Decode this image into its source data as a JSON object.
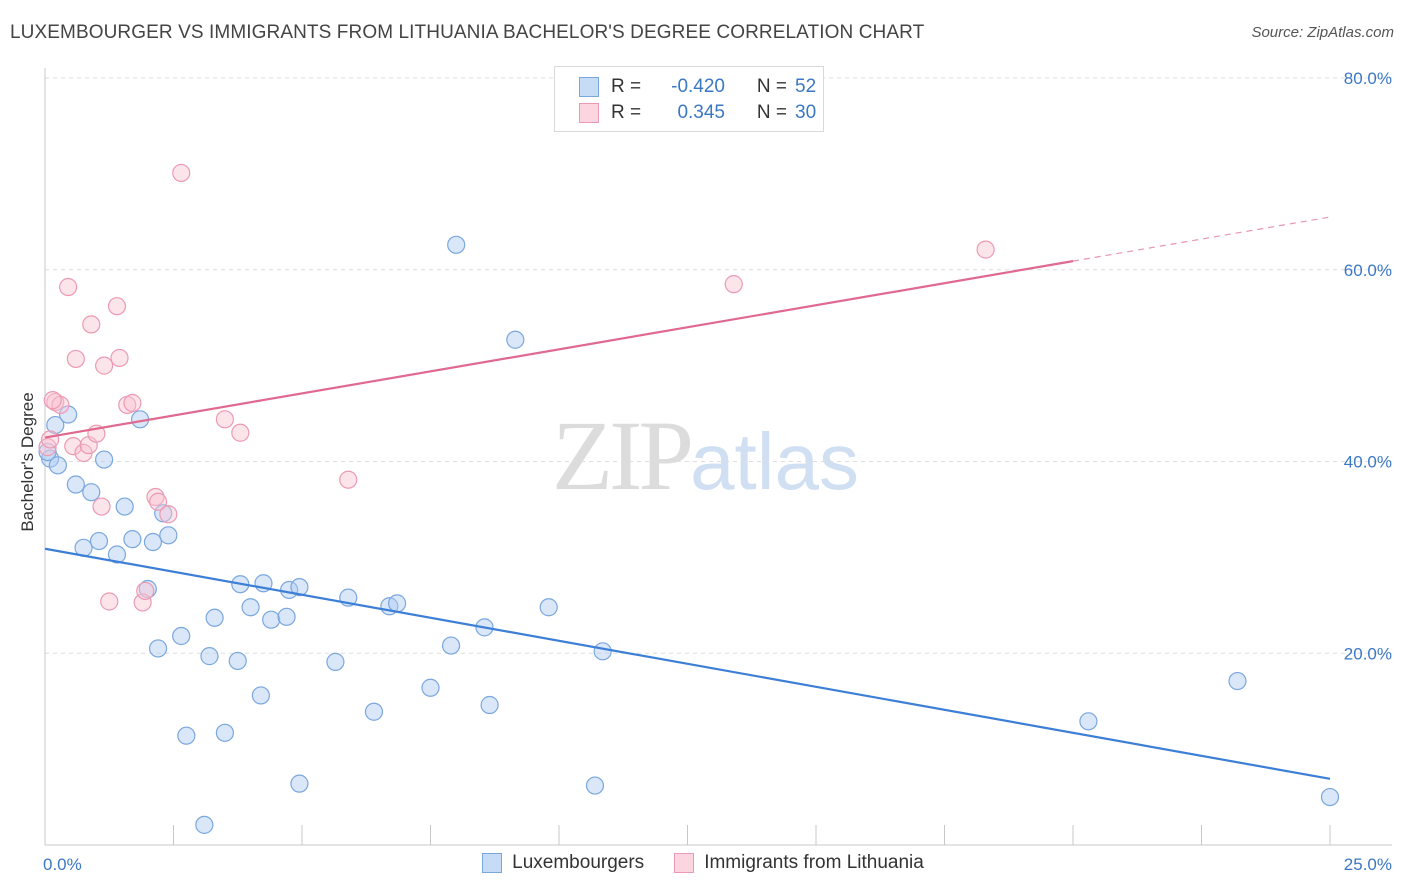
{
  "header": {
    "title": "LUXEMBOURGER VS IMMIGRANTS FROM LITHUANIA BACHELOR'S DEGREE CORRELATION CHART",
    "source": "Source: ZipAtlas.com"
  },
  "watermark": {
    "zip": "ZIP",
    "atlas": "atlas"
  },
  "legend": {
    "r_label": "R =",
    "n_label": "N =",
    "rows": [
      {
        "r": "-0.420",
        "n": "52",
        "color": "#a9c9f2",
        "border": "#6d9fd8"
      },
      {
        "r": "0.345",
        "n": "30",
        "color": "#f8c3d3",
        "border": "#e98aa6"
      }
    ]
  },
  "bottom_legend": [
    {
      "label": "Luxembourgers",
      "color": "#c5dbf6",
      "border": "#7aa7de"
    },
    {
      "label": "Immigrants from Lithuania",
      "color": "#fbd5e0",
      "border": "#ec9ab3"
    }
  ],
  "colors": {
    "blue": "#3d7fd6",
    "blue_fill": "rgba(170,201,242,0.45)",
    "blue_stroke": "#7aa7de",
    "pink": "#e0698f",
    "pink_fill": "rgba(248,195,211,0.45)",
    "pink_stroke": "#ec9ab3",
    "tick_text": "#3b78c3"
  },
  "chart_data": {
    "type": "scatter",
    "title": "LUXEMBOURGER VS IMMIGRANTS FROM LITHUANIA BACHELOR'S DEGREE CORRELATION CHART",
    "xlabel": "",
    "ylabel": "Bachelor's Degree",
    "xlim": [
      0,
      25
    ],
    "ylim": [
      0,
      80
    ],
    "y_ticks": [
      {
        "value": 20,
        "label": "20.0%"
      },
      {
        "value": 40,
        "label": "40.0%"
      },
      {
        "value": 60,
        "label": "60.0%"
      },
      {
        "value": 80,
        "label": "80.0%"
      }
    ],
    "x_ticks": [
      {
        "value": 0,
        "label": "0.0%"
      },
      {
        "value": 25,
        "label": "25.0%"
      }
    ],
    "grid": true,
    "series": [
      {
        "name": "Luxembourgers",
        "r": -0.42,
        "n": 52,
        "trend": {
          "x0": 0,
          "y0": 30.9,
          "x1": 25,
          "y1": 6.9,
          "dashed_from": null
        },
        "points": [
          [
            0.1,
            40.3
          ],
          [
            0.25,
            39.6
          ],
          [
            0.2,
            43.8
          ],
          [
            0.45,
            44.9
          ],
          [
            0.6,
            37.6
          ],
          [
            0.9,
            36.8
          ],
          [
            1.15,
            40.2
          ],
          [
            0.75,
            31.0
          ],
          [
            1.05,
            31.7
          ],
          [
            1.4,
            30.3
          ],
          [
            1.55,
            35.3
          ],
          [
            1.7,
            31.9
          ],
          [
            1.85,
            44.4
          ],
          [
            2.1,
            31.6
          ],
          [
            2.4,
            32.3
          ],
          [
            2.3,
            34.6
          ],
          [
            2.0,
            26.7
          ],
          [
            2.2,
            20.5
          ],
          [
            2.65,
            21.8
          ],
          [
            2.75,
            11.4
          ],
          [
            3.2,
            19.7
          ],
          [
            3.3,
            23.7
          ],
          [
            3.5,
            11.7
          ],
          [
            3.75,
            19.2
          ],
          [
            3.8,
            27.2
          ],
          [
            4.0,
            24.8
          ],
          [
            4.2,
            15.6
          ],
          [
            4.25,
            27.3
          ],
          [
            4.4,
            23.5
          ],
          [
            4.7,
            23.8
          ],
          [
            4.75,
            26.6
          ],
          [
            4.95,
            26.9
          ],
          [
            4.95,
            6.4
          ],
          [
            5.65,
            19.1
          ],
          [
            5.9,
            25.8
          ],
          [
            6.4,
            13.9
          ],
          [
            6.7,
            24.9
          ],
          [
            6.85,
            25.2
          ],
          [
            7.5,
            16.4
          ],
          [
            7.9,
            20.8
          ],
          [
            8.0,
            62.6
          ],
          [
            8.55,
            22.7
          ],
          [
            8.65,
            14.6
          ],
          [
            9.15,
            52.7
          ],
          [
            9.8,
            24.8
          ],
          [
            10.7,
            6.2
          ],
          [
            10.85,
            20.2
          ],
          [
            3.1,
            2.1
          ],
          [
            20.3,
            12.9
          ],
          [
            23.2,
            17.1
          ],
          [
            25.0,
            5.0
          ],
          [
            0.05,
            41.0
          ]
        ]
      },
      {
        "name": "Immigrants from Lithuania",
        "r": 0.345,
        "n": 30,
        "trend": {
          "x0": 0,
          "y0": 42.5,
          "x1": 25,
          "y1": 65.5,
          "dashed_from": 20.0
        },
        "points": [
          [
            0.05,
            41.5
          ],
          [
            0.2,
            46.2
          ],
          [
            0.3,
            45.9
          ],
          [
            0.45,
            58.2
          ],
          [
            0.6,
            50.7
          ],
          [
            0.55,
            41.6
          ],
          [
            0.75,
            40.9
          ],
          [
            0.85,
            41.7
          ],
          [
            0.9,
            54.3
          ],
          [
            1.0,
            42.9
          ],
          [
            1.1,
            35.3
          ],
          [
            1.15,
            50.0
          ],
          [
            1.25,
            25.4
          ],
          [
            1.4,
            56.2
          ],
          [
            1.45,
            50.8
          ],
          [
            1.6,
            45.9
          ],
          [
            1.7,
            46.1
          ],
          [
            1.9,
            25.3
          ],
          [
            1.95,
            26.5
          ],
          [
            2.15,
            36.3
          ],
          [
            2.2,
            35.8
          ],
          [
            2.4,
            34.5
          ],
          [
            2.65,
            70.1
          ],
          [
            3.5,
            44.4
          ],
          [
            3.8,
            43.0
          ],
          [
            5.9,
            38.1
          ],
          [
            13.4,
            58.5
          ],
          [
            18.3,
            62.1
          ],
          [
            0.15,
            46.4
          ],
          [
            0.1,
            42.3
          ]
        ]
      }
    ]
  }
}
